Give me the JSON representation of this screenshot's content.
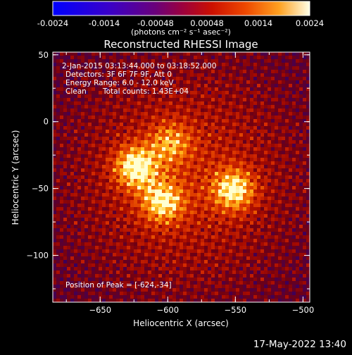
{
  "chart_data": {
    "type": "heatmap",
    "title": "Reconstructed RHESSI Image",
    "xlabel": "Heliocentric X (arcsec)",
    "ylabel": "Heliocentric Y (arcsec)",
    "xlim": [
      -685,
      -495
    ],
    "ylim": [
      -135,
      52
    ],
    "xticks": [
      -650,
      -600,
      -550,
      -500
    ],
    "yticks": [
      50,
      0,
      -50,
      -100
    ],
    "colorbar": {
      "ticks": [
        "-0.0024",
        "-0.0014",
        "-0.00048",
        "0.00048",
        "0.0014",
        "0.0024"
      ],
      "unit_label": "(photons cm⁻² s⁻¹ asec⁻²)",
      "range": [
        -0.0024,
        0.0024
      ]
    },
    "annotations": {
      "time_range": "2-Jan-2015 03:13:44.000 to 03:18:52.000",
      "detectors": "Detectors: 3F 6F 7F 9F, Att 0",
      "energy": "Energy Range: 6.0 - 12.0 keV",
      "clean_label": "Clean",
      "counts": "Total counts: 1.43E+04",
      "peak": "Position of Peak = [-624,-34]"
    },
    "sources": [
      {
        "x": -624,
        "y": -34,
        "rel_intensity": 1.0
      },
      {
        "x": -604,
        "y": -60,
        "rel_intensity": 0.85
      },
      {
        "x": -551,
        "y": -51,
        "rel_intensity": 0.92
      },
      {
        "x": -598,
        "y": -16,
        "rel_intensity": 0.6
      }
    ]
  },
  "footer": {
    "timestamp": "17-May-2022 13:40"
  }
}
